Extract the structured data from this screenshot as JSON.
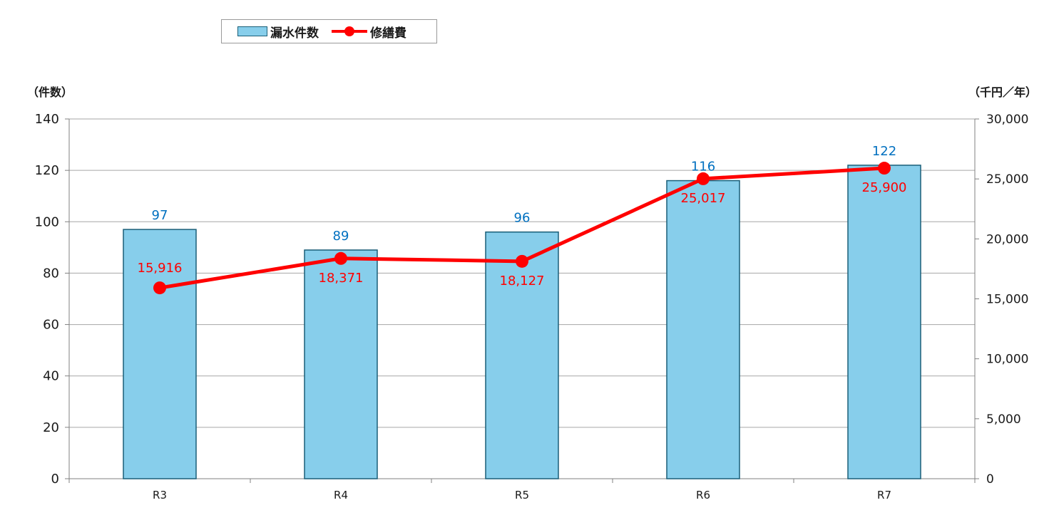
{
  "chart_data": {
    "type": "bar+line",
    "categories": [
      "R3",
      "R4",
      "R5",
      "R6",
      "R7"
    ],
    "series": [
      {
        "name": "漏水件数",
        "type": "bar",
        "axis": "left",
        "values": [
          97,
          89,
          96,
          116,
          122
        ],
        "labels": [
          "97",
          "89",
          "96",
          "116",
          "122"
        ],
        "color": "#87ceeb",
        "label_color": "#0070c0"
      },
      {
        "name": "修繕費",
        "type": "line",
        "axis": "right",
        "values": [
          15916,
          18371,
          18127,
          25017,
          25900
        ],
        "labels": [
          "15,916",
          "18,371",
          "18,127",
          "25,017",
          "25,900"
        ],
        "color": "#ff0000",
        "label_color": "#ff0000"
      }
    ],
    "y_left": {
      "label": "（件数）",
      "ylim": [
        0,
        140
      ],
      "ticks": [
        0,
        20,
        40,
        60,
        80,
        100,
        120,
        140
      ],
      "tick_labels": [
        "0",
        "20",
        "40",
        "60",
        "80",
        "100",
        "120",
        "140"
      ]
    },
    "y_right": {
      "label": "（千円／年）",
      "ylim": [
        0,
        30000
      ],
      "ticks": [
        0,
        5000,
        10000,
        15000,
        20000,
        25000,
        30000
      ],
      "tick_labels": [
        "0",
        "5,000",
        "10,000",
        "15,000",
        "20,000",
        "25,000",
        "30,000"
      ]
    },
    "grid": true,
    "legend_position": "top-left"
  }
}
